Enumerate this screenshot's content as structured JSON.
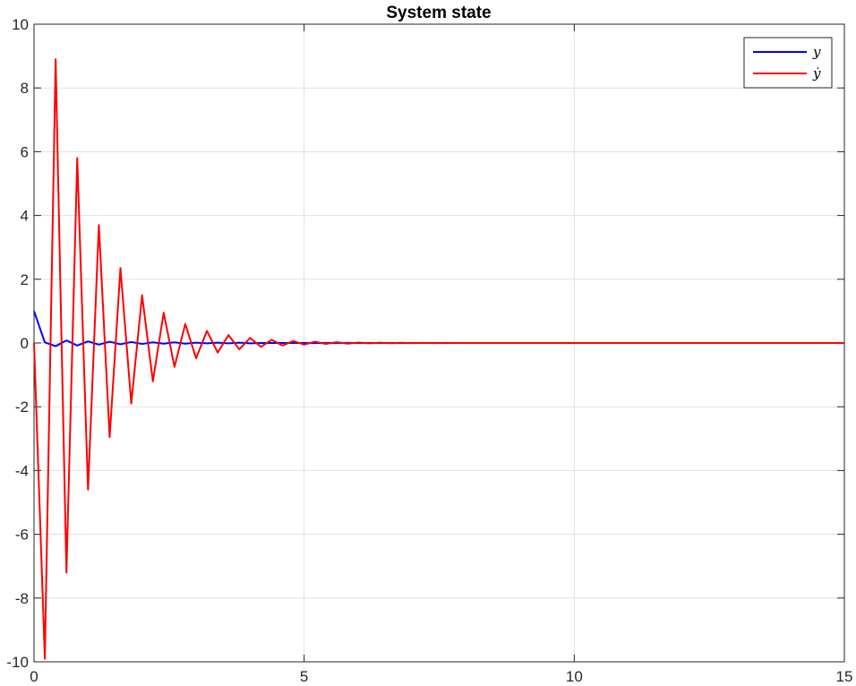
{
  "chart_data": {
    "type": "line",
    "title": "System state",
    "xlabel": "",
    "ylabel": "",
    "xlim": [
      0,
      15
    ],
    "ylim": [
      -10,
      10
    ],
    "xticks": [
      0,
      5,
      10,
      15
    ],
    "yticks": [
      -10,
      -8,
      -6,
      -4,
      -2,
      0,
      2,
      4,
      6,
      8,
      10
    ],
    "grid": true,
    "legend_position": "top-right",
    "series": [
      {
        "name": "y",
        "color": "#0000ff",
        "x": [
          0,
          0.2,
          0.4,
          0.6,
          0.8,
          1.0,
          1.2,
          1.4,
          1.6,
          1.8,
          2.0,
          2.2,
          2.4,
          2.6,
          2.8,
          3.0,
          3.2,
          3.4,
          3.6,
          3.8,
          4.0,
          4.2,
          4.4,
          4.6,
          4.8,
          5.0,
          5.2,
          5.4,
          5.6,
          5.8,
          6.0,
          6.2,
          6.4,
          6.6,
          6.8,
          7.0,
          7.2,
          7.4,
          7.6,
          7.8,
          15.0
        ],
        "y": [
          1.0,
          0.02,
          -0.1,
          0.08,
          -0.08,
          0.05,
          -0.05,
          0.04,
          -0.04,
          0.03,
          -0.03,
          0.02,
          -0.02,
          0.02,
          -0.02,
          0.01,
          -0.01,
          0.01,
          -0.01,
          0.01,
          -0.01,
          0.0,
          0.0,
          0.0,
          0.0,
          0.0,
          0.0,
          0.0,
          0.0,
          0.0,
          0.0,
          0.0,
          0.0,
          0.0,
          0.0,
          0.0,
          0.0,
          0.0,
          0.0,
          0.0,
          0.0
        ]
      },
      {
        "name": "ẏ",
        "color": "#ff0000",
        "x": [
          0,
          0.2,
          0.4,
          0.6,
          0.8,
          1.0,
          1.2,
          1.4,
          1.6,
          1.8,
          2.0,
          2.2,
          2.4,
          2.6,
          2.8,
          3.0,
          3.2,
          3.4,
          3.6,
          3.8,
          4.0,
          4.2,
          4.4,
          4.6,
          4.8,
          5.0,
          5.2,
          5.4,
          5.6,
          5.8,
          6.0,
          6.2,
          6.4,
          6.6,
          6.8,
          7.0,
          7.2,
          7.4,
          7.6,
          7.8,
          15.0
        ],
        "y": [
          0,
          -9.9,
          8.9,
          -7.2,
          5.8,
          -4.6,
          3.7,
          -2.95,
          2.35,
          -1.9,
          1.5,
          -1.2,
          0.95,
          -0.75,
          0.6,
          -0.48,
          0.38,
          -0.3,
          0.25,
          -0.2,
          0.16,
          -0.12,
          0.1,
          -0.08,
          0.06,
          -0.05,
          0.04,
          -0.03,
          0.025,
          -0.02,
          0.015,
          -0.012,
          0.01,
          -0.008,
          0.006,
          -0.005,
          0.004,
          -0.003,
          0.002,
          0.0,
          0.0
        ]
      }
    ]
  }
}
